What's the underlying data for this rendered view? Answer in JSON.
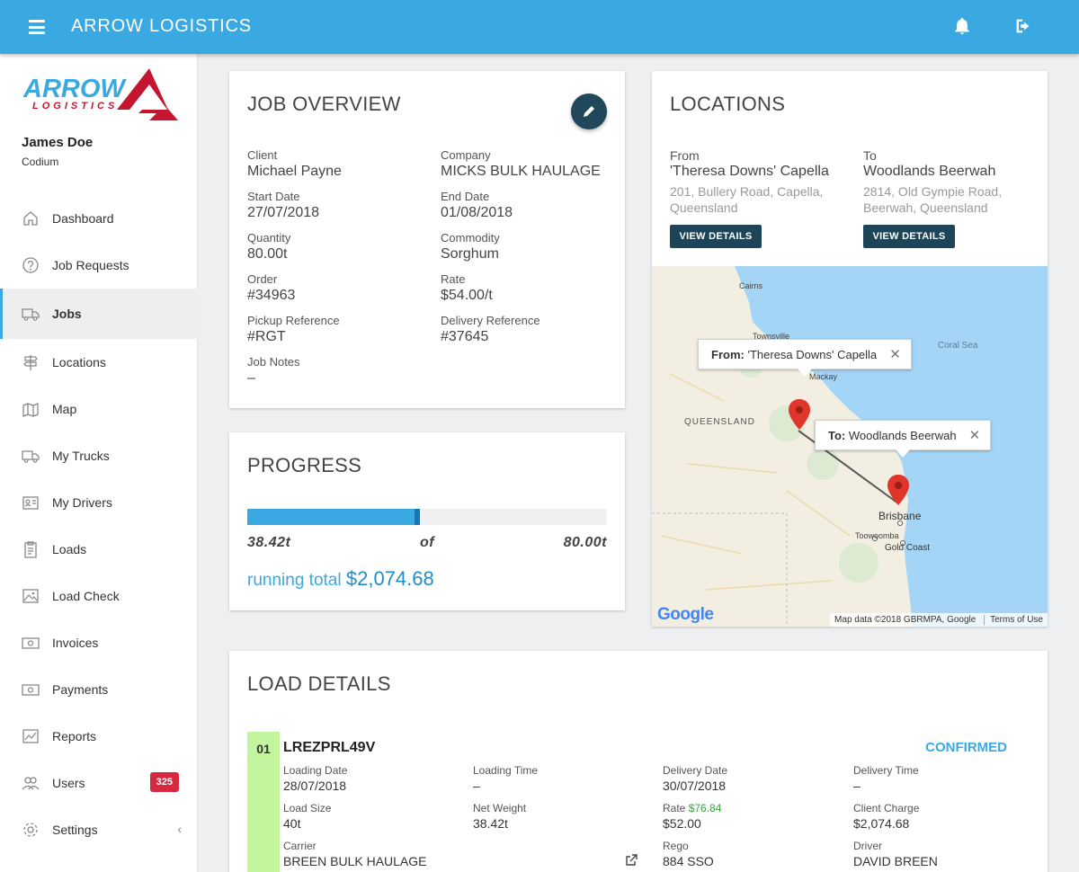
{
  "app": {
    "title": "ARROW LOGISTICS"
  },
  "user": {
    "name": "James Doe",
    "company": "Codium"
  },
  "logo": {
    "line1": "ARROW",
    "line2": "LOGISTICS"
  },
  "nav": [
    {
      "label": "Dashboard",
      "icon": "home-icon"
    },
    {
      "label": "Job Requests",
      "icon": "question-icon"
    },
    {
      "label": "Jobs",
      "icon": "truck-icon",
      "active": true
    },
    {
      "label": "Locations",
      "icon": "signpost-icon"
    },
    {
      "label": "Map",
      "icon": "map-icon"
    },
    {
      "label": "My Trucks",
      "icon": "truck-icon"
    },
    {
      "label": "My Drivers",
      "icon": "id-card-icon"
    },
    {
      "label": "Loads",
      "icon": "clipboard-icon"
    },
    {
      "label": "Load Check",
      "icon": "image-icon"
    },
    {
      "label": "Invoices",
      "icon": "money-icon"
    },
    {
      "label": "Payments",
      "icon": "money-icon"
    },
    {
      "label": "Reports",
      "icon": "chart-icon"
    },
    {
      "label": "Users",
      "icon": "users-icon",
      "badge": "325"
    },
    {
      "label": "Settings",
      "icon": "gear-icon",
      "chevron": "‹"
    }
  ],
  "job_overview": {
    "title": "JOB OVERVIEW",
    "fields": [
      {
        "label": "Client",
        "value": "Michael Payne"
      },
      {
        "label": "Company",
        "value": "MICKS BULK HAULAGE"
      },
      {
        "label": "Start Date",
        "value": "27/07/2018"
      },
      {
        "label": "End Date",
        "value": "01/08/2018"
      },
      {
        "label": "Quantity",
        "value": "80.00t"
      },
      {
        "label": "Commodity",
        "value": "Sorghum"
      },
      {
        "label": "Order",
        "value": "#34963"
      },
      {
        "label": "Rate",
        "value": "$54.00/t"
      },
      {
        "label": "Pickup Reference",
        "value": "#RGT"
      },
      {
        "label": "Delivery Reference",
        "value": "#37645"
      },
      {
        "label": "Job Notes",
        "value": "–"
      }
    ]
  },
  "progress": {
    "title": "PROGRESS",
    "done": "38.42t",
    "of": "of",
    "total": "80.00t",
    "fraction": 0.48,
    "running_label": "running total",
    "running_value": "$2,074.68"
  },
  "locations": {
    "title": "LOCATIONS",
    "from": {
      "label": "From",
      "name": "'Theresa Downs' Capella",
      "addr1": "201, Bullery Road, Capella,",
      "addr2": "Queensland",
      "button": "VIEW DETAILS"
    },
    "to": {
      "label": "To",
      "name": "Woodlands Beerwah",
      "addr1": "2814, Old Gympie Road,",
      "addr2": "Beerwah, Queensland",
      "button": "VIEW DETAILS"
    },
    "map": {
      "labels": {
        "cairns": "Cairns",
        "townsville": "Townsville",
        "mackay": "Mackay",
        "coral": "Coral Sea",
        "queensland": "QUEENSLAND",
        "brisbane": "Brisbane",
        "toowoomba": "Toowoomba",
        "goldcoast": "Gold Coast"
      },
      "from_bubble_label": "From:",
      "from_bubble_value": "'Theresa Downs' Capella",
      "to_bubble_label": "To:",
      "to_bubble_value": "Woodlands Beerwah",
      "close": "✕",
      "google": "Google",
      "mapdata": "Map data ©2018 GBRMPA, Google",
      "terms": "Terms of Use"
    }
  },
  "load_details": {
    "title": "LOAD DETAILS",
    "load": {
      "num": "01",
      "id": "LREZPRL49V",
      "status": "CONFIRMED",
      "loading_date_label": "Loading Date",
      "loading_date": "28/07/2018",
      "loading_time_label": "Loading Time",
      "loading_time": "–",
      "delivery_date_label": "Delivery Date",
      "delivery_date": "30/07/2018",
      "delivery_time_label": "Delivery Time",
      "delivery_time": "–",
      "load_size_label": "Load Size",
      "load_size": "40t",
      "net_weight_label": "Net Weight",
      "net_weight": "38.42t",
      "rate_label": "Rate",
      "rate_alt": "$76.84",
      "rate": "$52.00",
      "client_charge_label": "Client Charge",
      "client_charge": "$2,074.68",
      "carrier_label": "Carrier",
      "carrier": "BREEN BULK HAULAGE",
      "rego_label": "Rego",
      "rego": "884 SSO",
      "driver_label": "Driver",
      "driver": "DAVID BREEN"
    }
  },
  "colors": {
    "primary": "#3aa9e2",
    "dark": "#1e4557",
    "badge": "#d8283e",
    "confirmed": "#3aa9e2",
    "load_marker": "#c3f49e"
  }
}
